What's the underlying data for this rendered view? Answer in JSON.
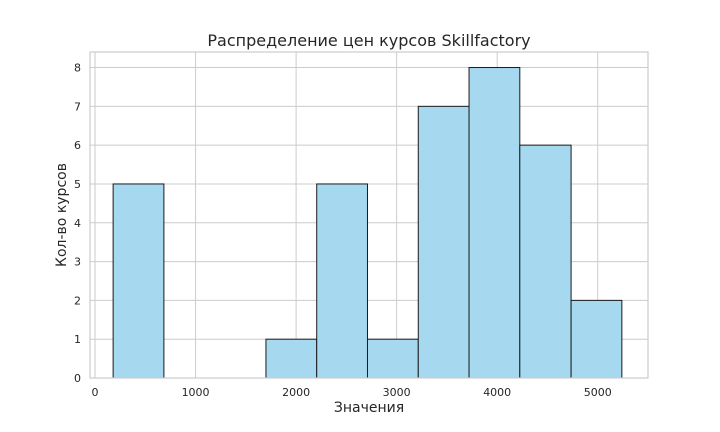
{
  "chart_data": {
    "type": "bar",
    "title": "Распределение цен курсов Skillfactory",
    "xlabel": "Значения",
    "ylabel": "Кол-во курсов",
    "xlim": [
      -50,
      5500
    ],
    "ylim": [
      0,
      8.4
    ],
    "x_ticks": [
      0,
      1000,
      2000,
      3000,
      4000,
      5000
    ],
    "y_ticks": [
      0,
      1,
      2,
      3,
      4,
      5,
      6,
      7,
      8
    ],
    "bins": [
      {
        "start": 180,
        "end": 685,
        "count": 5
      },
      {
        "start": 685,
        "end": 1190,
        "count": 0
      },
      {
        "start": 1190,
        "end": 1700,
        "count": 0
      },
      {
        "start": 1700,
        "end": 2205,
        "count": 1
      },
      {
        "start": 2205,
        "end": 2710,
        "count": 5
      },
      {
        "start": 2710,
        "end": 3215,
        "count": 1
      },
      {
        "start": 3215,
        "end": 3720,
        "count": 7
      },
      {
        "start": 3720,
        "end": 4225,
        "count": 8
      },
      {
        "start": 4225,
        "end": 4735,
        "count": 6
      },
      {
        "start": 4735,
        "end": 5240,
        "count": 2
      }
    ],
    "bar_color": "#a6d9ef",
    "edge_color": "#1a1a1a",
    "grid": true
  }
}
